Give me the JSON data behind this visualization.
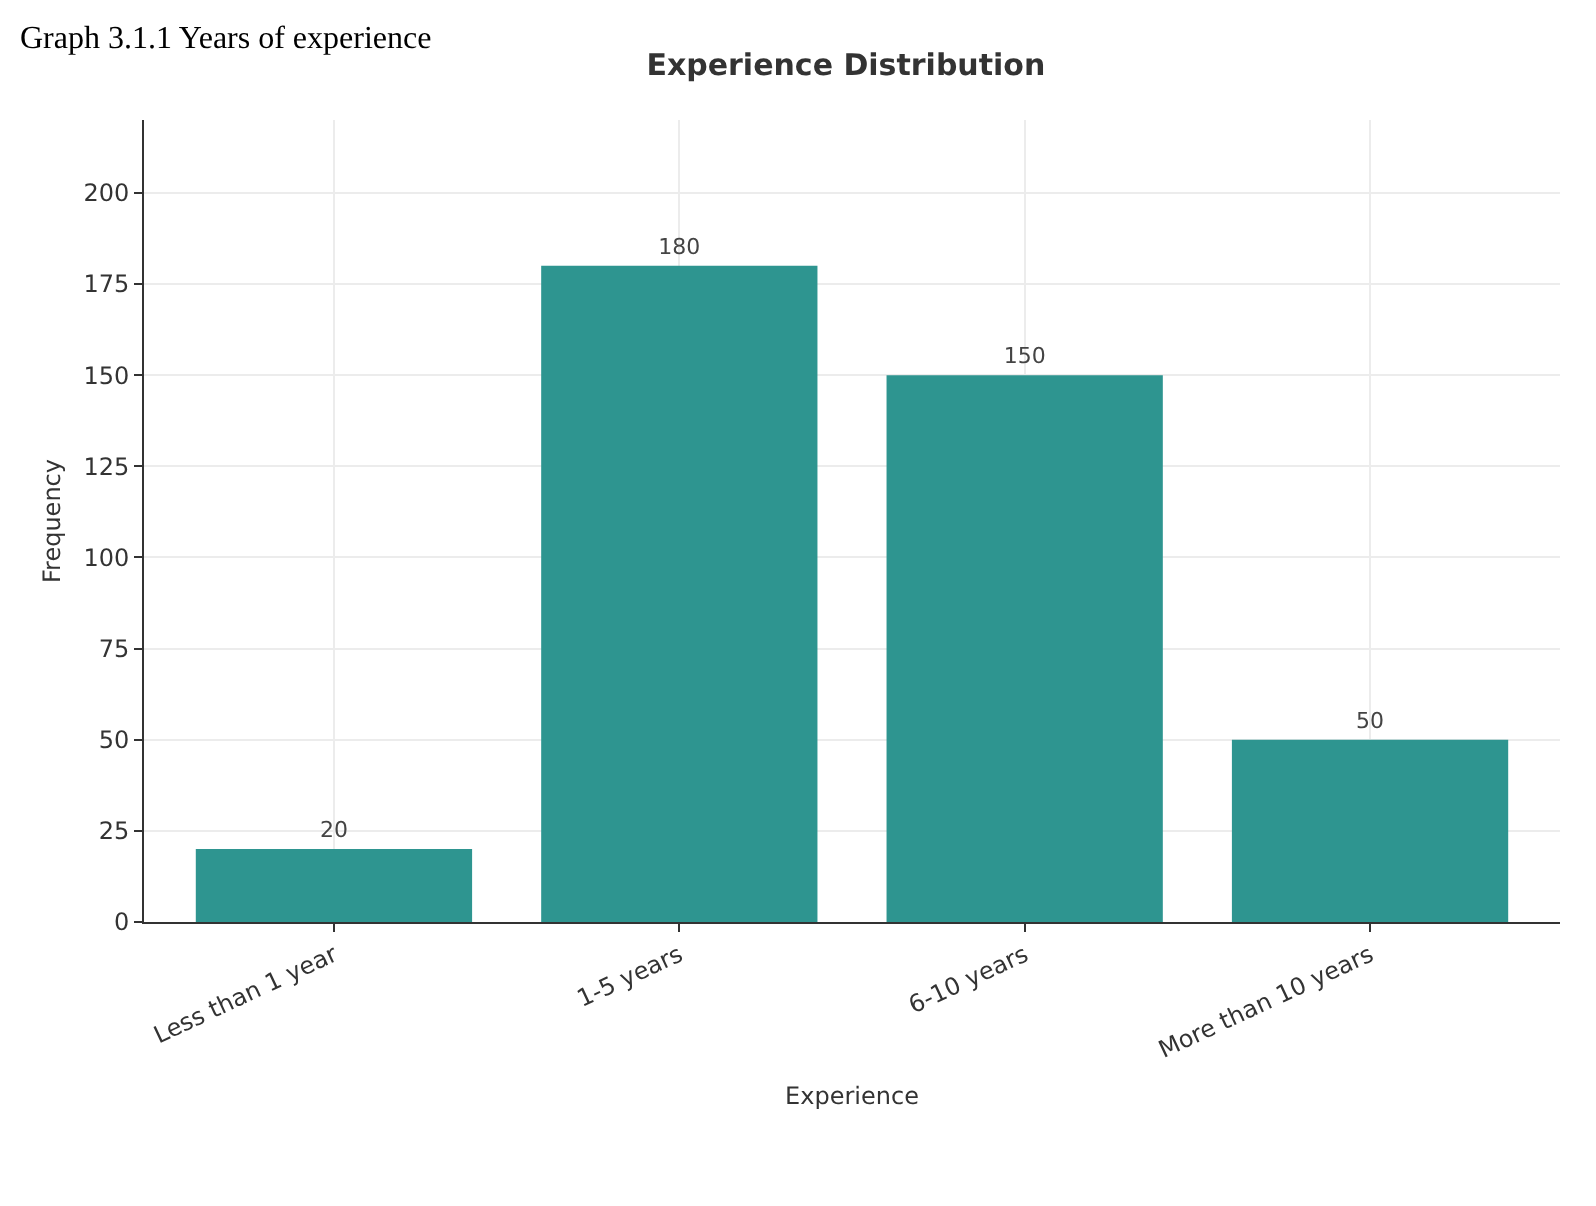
{
  "chart_data": {
    "type": "bar",
    "title": "Experience Distribution",
    "xlabel": "Experience",
    "ylabel": "Frequency",
    "annotations": [
      "Graph 3.1.1 Years of experience"
    ],
    "categories": [
      "Less than 1 year",
      "1-5 years",
      "6-10 years",
      "More than 10 years"
    ],
    "values": [
      20,
      180,
      150,
      50
    ],
    "color": "#2e9590",
    "ylim": [
      0,
      220
    ],
    "yticks": [
      0,
      25,
      50,
      75,
      100,
      125,
      150,
      175,
      200
    ],
    "grid": true,
    "data_labels": true
  }
}
